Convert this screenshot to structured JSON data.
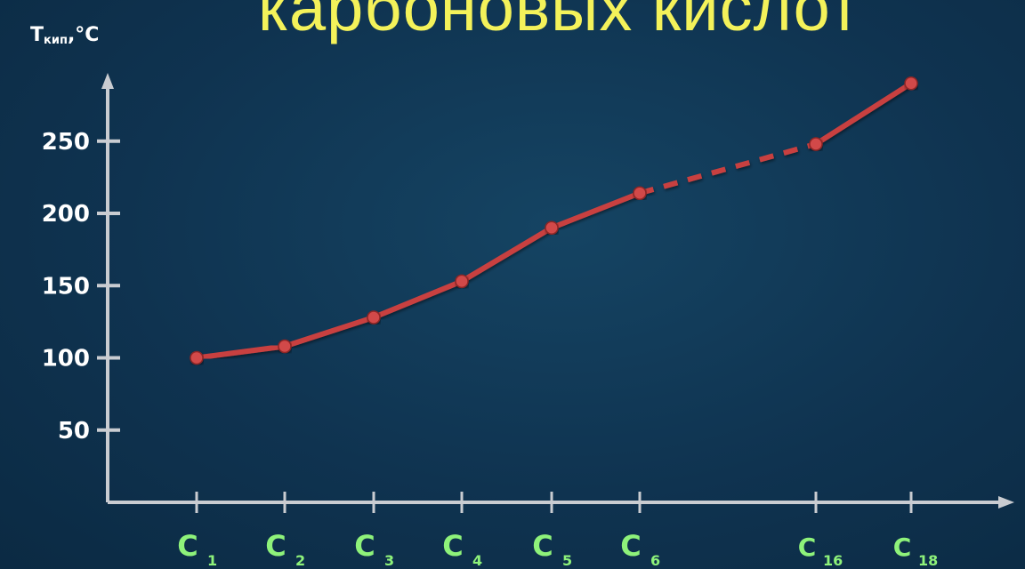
{
  "slide": {
    "title_fragment": "карбоновых  кислот"
  },
  "chart_data": {
    "type": "line",
    "title": "",
    "ylabel_main": "T",
    "ylabel_sub": "кип",
    "ylabel_unit": ",°C",
    "ylim": [
      0,
      300
    ],
    "y_ticks": [
      "50",
      "100",
      "150",
      "200",
      "250"
    ],
    "y_tick_values": [
      50,
      100,
      150,
      200,
      250
    ],
    "categories": [
      {
        "main": "C",
        "sub": "1"
      },
      {
        "main": "C",
        "sub": "2"
      },
      {
        "main": "C",
        "sub": "3"
      },
      {
        "main": "C",
        "sub": "4"
      },
      {
        "main": "C",
        "sub": "5"
      },
      {
        "main": "C",
        "sub": "6"
      },
      {
        "main": "C",
        "sub": "16"
      },
      {
        "main": "C",
        "sub": "18"
      }
    ],
    "x_values": [
      1,
      2,
      3,
      4,
      5,
      6,
      16,
      18
    ],
    "values": [
      100,
      108,
      128,
      153,
      190,
      214,
      248,
      290
    ],
    "gap_after_index": 5,
    "gap_style": "dashed",
    "grid": false,
    "colors": {
      "line": "#c8403f",
      "axis": "#c9ccd1",
      "x_labels": "#8ef27a",
      "y_labels": "#ffffff",
      "title": "#f4f25a"
    }
  }
}
